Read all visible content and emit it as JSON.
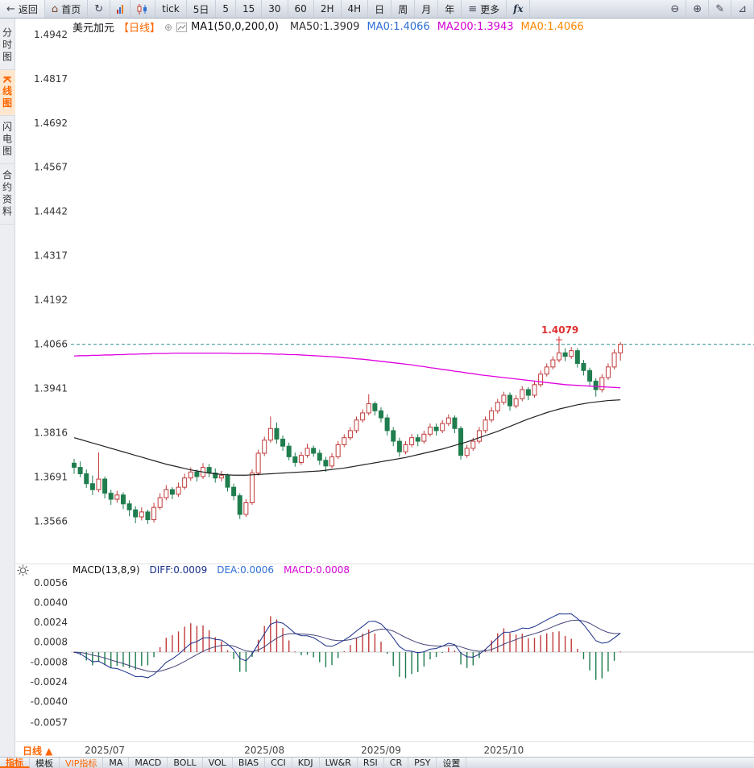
{
  "icons": {
    "back": "←",
    "home": "⌂",
    "refresh": "↻",
    "more": "≡",
    "zoom_out": "⊖",
    "zoom_in": "⊕",
    "pencil": "✎",
    "collapse": "⊕",
    "gear": "☼",
    "triangle": "⊿"
  },
  "toolbar": {
    "back_label": "返回",
    "home_label": "首页",
    "periods": [
      "tick",
      "5日",
      "5",
      "15",
      "30",
      "60",
      "2H",
      "4H",
      "日",
      "周",
      "月",
      "年"
    ],
    "more_label": "更多",
    "fx_label": "fx"
  },
  "sidebar": {
    "items": [
      {
        "label": "分时图",
        "active": false
      },
      {
        "label": "K线图",
        "active": true
      },
      {
        "label": "闪电图",
        "active": false
      },
      {
        "label": "合约资料",
        "active": false
      }
    ]
  },
  "chart_header": {
    "symbol": "美元加元",
    "period_tag": "【日线】",
    "ma_param": "MA1(50,0,200,0)",
    "readouts": [
      {
        "text": "MA50:1.3909",
        "color": "#333333"
      },
      {
        "text": "MA0:1.4066",
        "color": "#2f6fd5"
      },
      {
        "text": "MA200:1.3943",
        "color": "#d400d4"
      },
      {
        "text": "MA0:1.4066",
        "color": "#ff8800"
      }
    ]
  },
  "macd_header": {
    "param": "MACD(13,8,9)",
    "readouts": [
      {
        "text": "DIFF:0.0009",
        "color": "#1a2f8a"
      },
      {
        "text": "DEA:0.0006",
        "color": "#2f6fd5"
      },
      {
        "text": "MACD:0.0008",
        "color": "#d400d4"
      }
    ]
  },
  "bottom": {
    "period_tag": "日线 ▲",
    "tabs": [
      {
        "label": "指标",
        "active": true
      },
      {
        "label": "模板",
        "active": false
      }
    ],
    "vip_label": "VIP指标",
    "indicators": [
      "MA",
      "MACD",
      "BOLL",
      "VOL",
      "BIAS",
      "CCI",
      "KDJ",
      "LW&R",
      "RSI",
      "CR",
      "PSY"
    ],
    "settings_label": "设置"
  },
  "chart_data": {
    "type": "candlestick",
    "title": "美元加元 日线",
    "price_axis_ticks": [
      "1.4942",
      "1.4817",
      "1.4692",
      "1.4567",
      "1.4442",
      "1.4317",
      "1.4192",
      "1.4066",
      "1.3941",
      "1.3816",
      "1.3691",
      "1.3566"
    ],
    "current_price": 1.4066,
    "peak_annotation": {
      "index": 79,
      "price": 1.4079,
      "label": "1.4079"
    },
    "month_ticks": [
      {
        "label": "2025/07",
        "index": 5
      },
      {
        "label": "2025/08",
        "index": 31
      },
      {
        "label": "2025/09",
        "index": 50
      },
      {
        "label": "2025/10",
        "index": 70
      }
    ],
    "ma_last": {
      "ma50": 1.3909,
      "ma200": 1.3943
    },
    "colors": {
      "up": "#c13b3b",
      "down": "#1f7d4e",
      "ma50": "#222222",
      "ma200": "#e000e0",
      "current_line": "#2e8b8b",
      "annotation": "#e03030"
    },
    "candles": [
      [
        1.373,
        1.3742,
        1.37,
        1.3718
      ],
      [
        1.3718,
        1.3735,
        1.369,
        1.37
      ],
      [
        1.37,
        1.3712,
        1.366,
        1.3672
      ],
      [
        1.3672,
        1.3695,
        1.364,
        1.3655
      ],
      [
        1.3655,
        1.376,
        1.3648,
        1.3685
      ],
      [
        1.3685,
        1.3692,
        1.363,
        1.3645
      ],
      [
        1.3645,
        1.3655,
        1.3612,
        1.3628
      ],
      [
        1.3628,
        1.3652,
        1.3618,
        1.364
      ],
      [
        1.364,
        1.3648,
        1.36,
        1.3615
      ],
      [
        1.3615,
        1.3625,
        1.358,
        1.3598
      ],
      [
        1.3598,
        1.3608,
        1.356,
        1.3578
      ],
      [
        1.3578,
        1.3605,
        1.3568,
        1.3592
      ],
      [
        1.3592,
        1.3598,
        1.3558,
        1.357
      ],
      [
        1.357,
        1.3618,
        1.3562,
        1.3605
      ],
      [
        1.3605,
        1.3645,
        1.3598,
        1.3632
      ],
      [
        1.3632,
        1.3668,
        1.3625,
        1.3655
      ],
      [
        1.3655,
        1.3662,
        1.3628,
        1.3642
      ],
      [
        1.3642,
        1.3675,
        1.3635,
        1.3662
      ],
      [
        1.3662,
        1.37,
        1.3655,
        1.3688
      ],
      [
        1.3688,
        1.3718,
        1.368,
        1.3705
      ],
      [
        1.3705,
        1.3712,
        1.3678,
        1.3692
      ],
      [
        1.3692,
        1.373,
        1.3685,
        1.3718
      ],
      [
        1.3718,
        1.3728,
        1.369,
        1.3702
      ],
      [
        1.3702,
        1.3715,
        1.3675,
        1.3688
      ],
      [
        1.3688,
        1.3708,
        1.3678,
        1.3695
      ],
      [
        1.3695,
        1.37,
        1.365,
        1.3662
      ],
      [
        1.3662,
        1.3672,
        1.3625,
        1.3638
      ],
      [
        1.3638,
        1.3645,
        1.3572,
        1.3585
      ],
      [
        1.3585,
        1.3628,
        1.3578,
        1.3618
      ],
      [
        1.3618,
        1.3712,
        1.3612,
        1.3702
      ],
      [
        1.3702,
        1.3768,
        1.3695,
        1.3758
      ],
      [
        1.3758,
        1.3805,
        1.375,
        1.3795
      ],
      [
        1.3795,
        1.3862,
        1.3788,
        1.3828
      ],
      [
        1.3828,
        1.3845,
        1.3785,
        1.3798
      ],
      [
        1.3798,
        1.3808,
        1.3765,
        1.3778
      ],
      [
        1.3778,
        1.3788,
        1.3738,
        1.3748
      ],
      [
        1.3748,
        1.376,
        1.372,
        1.3732
      ],
      [
        1.3732,
        1.3762,
        1.3725,
        1.3752
      ],
      [
        1.3752,
        1.3785,
        1.3745,
        1.3772
      ],
      [
        1.3772,
        1.378,
        1.3748,
        1.3758
      ],
      [
        1.3758,
        1.3768,
        1.3725,
        1.3738
      ],
      [
        1.3738,
        1.3748,
        1.3705,
        1.3722
      ],
      [
        1.3722,
        1.3758,
        1.3715,
        1.3748
      ],
      [
        1.3748,
        1.3792,
        1.3742,
        1.3782
      ],
      [
        1.3782,
        1.3812,
        1.3775,
        1.3802
      ],
      [
        1.3802,
        1.3832,
        1.3795,
        1.3822
      ],
      [
        1.3822,
        1.3862,
        1.3815,
        1.3852
      ],
      [
        1.3852,
        1.3882,
        1.3845,
        1.3872
      ],
      [
        1.3872,
        1.3925,
        1.3865,
        1.3898
      ],
      [
        1.3898,
        1.3905,
        1.3865,
        1.3878
      ],
      [
        1.3878,
        1.3888,
        1.3845,
        1.3858
      ],
      [
        1.3858,
        1.3868,
        1.3808,
        1.3822
      ],
      [
        1.3822,
        1.3832,
        1.3778,
        1.3792
      ],
      [
        1.3792,
        1.3802,
        1.3748,
        1.3762
      ],
      [
        1.3762,
        1.3792,
        1.3755,
        1.3782
      ],
      [
        1.3782,
        1.3812,
        1.3775,
        1.3802
      ],
      [
        1.3802,
        1.3812,
        1.3778,
        1.3792
      ],
      [
        1.3792,
        1.3822,
        1.3785,
        1.3812
      ],
      [
        1.3812,
        1.3842,
        1.3805,
        1.3832
      ],
      [
        1.3832,
        1.3842,
        1.3808,
        1.3822
      ],
      [
        1.3822,
        1.3852,
        1.3815,
        1.3842
      ],
      [
        1.3842,
        1.3868,
        1.3835,
        1.3858
      ],
      [
        1.3858,
        1.3865,
        1.3815,
        1.3828
      ],
      [
        1.3828,
        1.3835,
        1.374,
        1.3752
      ],
      [
        1.3752,
        1.3782,
        1.3745,
        1.3772
      ],
      [
        1.3772,
        1.3802,
        1.3765,
        1.3792
      ],
      [
        1.3792,
        1.3832,
        1.3785,
        1.3822
      ],
      [
        1.3822,
        1.3862,
        1.3815,
        1.3852
      ],
      [
        1.3852,
        1.3888,
        1.3845,
        1.3878
      ],
      [
        1.3878,
        1.3912,
        1.387,
        1.3902
      ],
      [
        1.3902,
        1.3932,
        1.3895,
        1.3922
      ],
      [
        1.3922,
        1.393,
        1.3878,
        1.3892
      ],
      [
        1.3892,
        1.3922,
        1.3885,
        1.3912
      ],
      [
        1.3912,
        1.3948,
        1.3905,
        1.3938
      ],
      [
        1.3938,
        1.3945,
        1.3908,
        1.3922
      ],
      [
        1.3922,
        1.3962,
        1.3915,
        1.3952
      ],
      [
        1.3952,
        1.3992,
        1.3945,
        1.3982
      ],
      [
        1.3982,
        1.4012,
        1.3975,
        1.4002
      ],
      [
        1.4002,
        1.4032,
        1.3995,
        1.4022
      ],
      [
        1.4022,
        1.4079,
        1.4015,
        1.4042
      ],
      [
        1.4042,
        1.4055,
        1.4018,
        1.4032
      ],
      [
        1.4032,
        1.4058,
        1.4025,
        1.4048
      ],
      [
        1.4048,
        1.4055,
        1.4,
        1.4012
      ],
      [
        1.4012,
        1.4022,
        1.3978,
        1.3992
      ],
      [
        1.3992,
        1.4,
        1.3948,
        1.3962
      ],
      [
        1.3962,
        1.397,
        1.3918,
        1.3938
      ],
      [
        1.3938,
        1.3982,
        1.393,
        1.3972
      ],
      [
        1.3972,
        1.4012,
        1.3965,
        1.4002
      ],
      [
        1.4002,
        1.4052,
        1.3995,
        1.4042
      ],
      [
        1.4042,
        1.4072,
        1.402,
        1.4066
      ]
    ],
    "ma50": [
      1.3802,
      1.3797,
      1.3792,
      1.3787,
      1.3782,
      1.3777,
      1.3772,
      1.3767,
      1.3762,
      1.3757,
      1.3752,
      1.3747,
      1.3742,
      1.3737,
      1.3732,
      1.3727,
      1.3723,
      1.3719,
      1.3715,
      1.3711,
      1.3708,
      1.3705,
      1.3702,
      1.37,
      1.3698,
      1.3697,
      1.3696,
      1.3696,
      1.3696,
      1.3697,
      1.3698,
      1.3699,
      1.37,
      1.3701,
      1.3702,
      1.3703,
      1.3704,
      1.3705,
      1.3706,
      1.3707,
      1.3708,
      1.371,
      1.3712,
      1.3714,
      1.3716,
      1.3719,
      1.3722,
      1.3725,
      1.3728,
      1.3731,
      1.3734,
      1.3737,
      1.374,
      1.3743,
      1.3746,
      1.375,
      1.3754,
      1.3758,
      1.3762,
      1.3766,
      1.377,
      1.3775,
      1.378,
      1.3785,
      1.379,
      1.3796,
      1.3802,
      1.3808,
      1.3814,
      1.382,
      1.3827,
      1.3834,
      1.3841,
      1.3848,
      1.3855,
      1.3861,
      1.3867,
      1.3873,
      1.3878,
      1.3883,
      1.3887,
      1.3891,
      1.3895,
      1.3898,
      1.3901,
      1.3903,
      1.3905,
      1.3907,
      1.3908,
      1.3909
    ],
    "ma200": [
      1.4033,
      1.4034,
      1.4034,
      1.4035,
      1.4035,
      1.4036,
      1.4036,
      1.4037,
      1.4037,
      1.4038,
      1.4038,
      1.4039,
      1.4039,
      1.404,
      1.404,
      1.404,
      1.4041,
      1.4041,
      1.4041,
      1.4041,
      1.4041,
      1.4041,
      1.4041,
      1.4041,
      1.4041,
      1.4041,
      1.404,
      1.404,
      1.404,
      1.404,
      1.404,
      1.4039,
      1.4039,
      1.4038,
      1.4038,
      1.4037,
      1.4037,
      1.4036,
      1.4035,
      1.4034,
      1.4033,
      1.4032,
      1.4031,
      1.403,
      1.4028,
      1.4027,
      1.4025,
      1.4024,
      1.4022,
      1.402,
      1.4018,
      1.4016,
      1.4014,
      1.4012,
      1.401,
      1.4008,
      1.4005,
      1.4003,
      1.4,
      1.3998,
      1.3995,
      1.3993,
      1.399,
      1.3988,
      1.3985,
      1.3983,
      1.398,
      1.3978,
      1.3976,
      1.3974,
      1.3972,
      1.397,
      1.3968,
      1.3966,
      1.3964,
      1.3962,
      1.396,
      1.3958,
      1.3956,
      1.3954,
      1.3952,
      1.3951,
      1.395,
      1.3949,
      1.3948,
      1.3947,
      1.3946,
      1.3945,
      1.3944,
      1.3943
    ],
    "macd": {
      "params": "13,8,9",
      "axis_ticks": [
        "0.0056",
        "0.0040",
        "0.0024",
        "0.0008",
        "-0.0008",
        "-0.0024",
        "-0.0040",
        "-0.0057"
      ],
      "diff_last": 0.0009,
      "dea_last": 0.0006,
      "macd_last": 0.0008,
      "colors": {
        "diff": "#1a2f8a",
        "dea": "#44447a",
        "hist_up": "#c13b3b",
        "hist_down": "#1f7d4e"
      }
    }
  }
}
